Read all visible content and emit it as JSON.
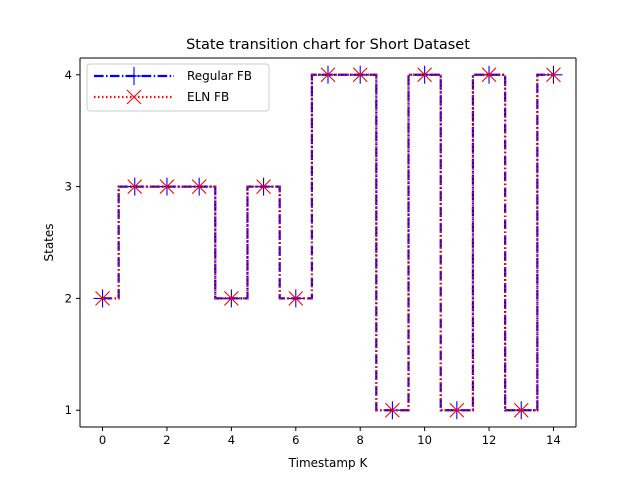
{
  "chart_data": {
    "type": "line",
    "title": "State transition chart for Short Dataset",
    "xlabel": "Timestamp K",
    "ylabel": "States",
    "x": [
      0,
      1,
      2,
      3,
      4,
      5,
      6,
      7,
      8,
      9,
      10,
      11,
      12,
      13,
      14
    ],
    "xlim": [
      -0.7,
      14.7
    ],
    "ylim": [
      0.85,
      4.15
    ],
    "xticks": [
      0,
      2,
      4,
      6,
      8,
      10,
      12,
      14
    ],
    "yticks": [
      1,
      2,
      3,
      4
    ],
    "grid": false,
    "legend_position": "top-left",
    "drawstyle": "steps-mid",
    "series": [
      {
        "name": "Regular FB",
        "values": [
          2,
          3,
          3,
          3,
          2,
          3,
          2,
          4,
          4,
          1,
          4,
          1,
          4,
          1,
          4
        ],
        "color": "#0000ff",
        "line_style": "dashdot",
        "marker": "plus"
      },
      {
        "name": "ELN FB",
        "values": [
          2,
          3,
          3,
          3,
          2,
          3,
          2,
          4,
          4,
          1,
          4,
          1,
          4,
          1,
          4
        ],
        "color": "#ff0000",
        "line_style": "dotted",
        "marker": "x"
      }
    ]
  }
}
